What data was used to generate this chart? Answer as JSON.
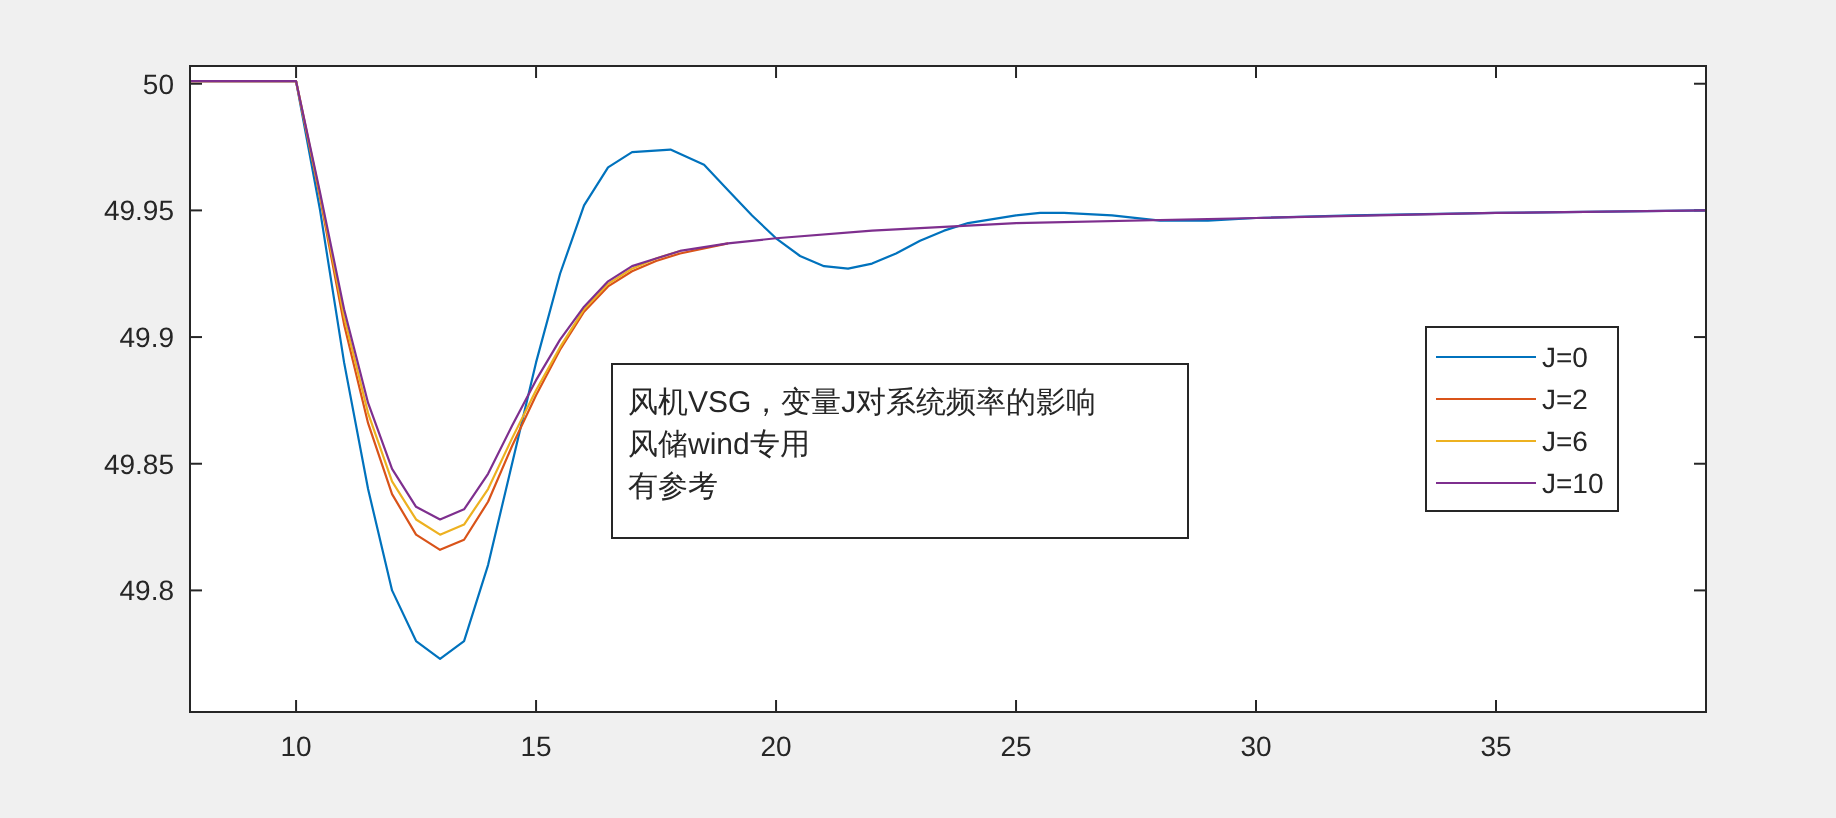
{
  "chart_data": {
    "type": "line",
    "xlim": [
      7.79,
      39.375
    ],
    "ylim": [
      49.752,
      50.007
    ],
    "xticks": [
      10,
      15,
      20,
      25,
      30,
      35
    ],
    "yticks": [
      49.8,
      49.85,
      49.9,
      49.95,
      50
    ],
    "grid": false,
    "legend": "right",
    "marker": "none",
    "line_style": "solid",
    "annotations": [
      "风机VSG，变量J对系统频率的影响",
      "风储wind专用",
      "有参考"
    ],
    "series": [
      {
        "name": "J=0",
        "color": "#0072bd",
        "x": [
          7.79,
          10,
          10.5,
          11,
          11.5,
          12,
          12.5,
          13,
          13.5,
          14,
          14.5,
          15,
          15.5,
          16,
          16.5,
          17,
          17.8,
          18.5,
          19,
          19.5,
          20,
          20.5,
          21,
          21.5,
          22,
          22.5,
          23,
          23.5,
          24,
          25,
          25.5,
          26,
          27,
          28,
          29,
          30,
          32,
          35,
          39.375
        ],
        "values": [
          50.001,
          50.001,
          49.95,
          49.89,
          49.84,
          49.8,
          49.78,
          49.773,
          49.78,
          49.81,
          49.85,
          49.89,
          49.925,
          49.952,
          49.967,
          49.973,
          49.974,
          49.968,
          49.958,
          49.948,
          49.939,
          49.932,
          49.928,
          49.927,
          49.929,
          49.933,
          49.938,
          49.942,
          49.945,
          49.948,
          49.949,
          49.949,
          49.948,
          49.946,
          49.946,
          49.947,
          49.948,
          49.949,
          49.95
        ]
      },
      {
        "name": "J=2",
        "color": "#d95319",
        "x": [
          7.79,
          10,
          10.5,
          11,
          11.5,
          12,
          12.5,
          13,
          13.5,
          14,
          14.5,
          15,
          15.5,
          16,
          16.5,
          17,
          17.5,
          18,
          19
        ],
        "values": [
          50.001,
          50.001,
          49.955,
          49.905,
          49.866,
          49.838,
          49.822,
          49.816,
          49.82,
          49.835,
          49.857,
          49.877,
          49.895,
          49.91,
          49.92,
          49.926,
          49.93,
          49.933,
          49.937
        ]
      },
      {
        "name": "J=6",
        "color": "#edb120",
        "x": [
          7.79,
          10,
          10.5,
          11,
          11.5,
          12,
          12.5,
          13,
          13.5,
          14,
          14.5,
          15,
          15.5,
          16,
          16.5,
          17,
          17.5,
          18
        ],
        "values": [
          50.001,
          50.001,
          49.956,
          49.908,
          49.87,
          49.843,
          49.828,
          49.822,
          49.826,
          49.84,
          49.86,
          49.879,
          49.896,
          49.911,
          49.921,
          49.927,
          49.931,
          49.934
        ]
      },
      {
        "name": "J=10",
        "color": "#7e2f8e",
        "x": [
          7.79,
          10,
          10.5,
          11,
          11.5,
          12,
          12.5,
          13,
          13.5,
          14,
          14.5,
          15,
          15.5,
          16,
          16.5,
          17,
          17.5,
          18,
          19,
          20,
          22,
          25,
          30,
          35,
          39.375
        ],
        "values": [
          50.001,
          50.001,
          49.957,
          49.911,
          49.874,
          49.848,
          49.833,
          49.828,
          49.832,
          49.846,
          49.865,
          49.883,
          49.899,
          49.912,
          49.922,
          49.928,
          49.931,
          49.934,
          49.937,
          49.939,
          49.942,
          49.945,
          49.947,
          49.949,
          49.95
        ]
      }
    ]
  }
}
